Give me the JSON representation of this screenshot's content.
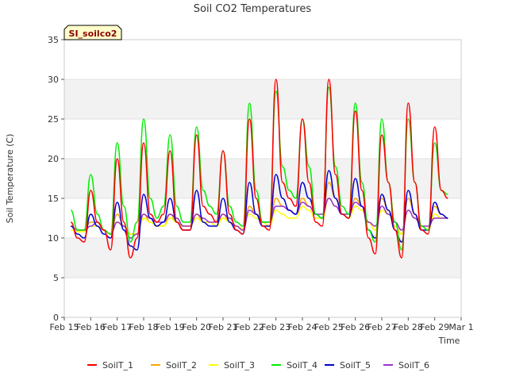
{
  "chart_data": {
    "type": "line",
    "title": "Soil CO2 Temperatures",
    "xlabel": "Time",
    "ylabel": "Soil Temperature (C)",
    "station_label": "SI_soilco2",
    "ylim": [
      0,
      35
    ],
    "yticks": [
      0,
      5,
      10,
      15,
      20,
      25,
      30,
      35
    ],
    "xlim": [
      "Feb 15",
      "Mar 1"
    ],
    "xticks": [
      "Feb 15",
      "Feb 16",
      "Feb 17",
      "Feb 18",
      "Feb 19",
      "Feb 20",
      "Feb 21",
      "Feb 22",
      "Feb 23",
      "Feb 24",
      "Feb 25",
      "Feb 26",
      "Feb 27",
      "Feb 28",
      "Feb 29",
      "Mar 1"
    ],
    "grid": "horizontal bands",
    "legend_position": "bottom",
    "x_sample_interval": "6 hours",
    "x_start": "Feb 15 06:00",
    "series": [
      {
        "name": "SoilT_1",
        "color": "#ff0000",
        "values": [
          12,
          10,
          9.5,
          16,
          12,
          11,
          8.5,
          20,
          12,
          7.5,
          10,
          22,
          13,
          12,
          13,
          21,
          12,
          11,
          11,
          23,
          14,
          13,
          12,
          21,
          13,
          11,
          10.5,
          25,
          15,
          11.5,
          11,
          30,
          17,
          15,
          14,
          25,
          17,
          12,
          11.5,
          30,
          18,
          13,
          12.5,
          26,
          16,
          10,
          8,
          23,
          17,
          11,
          7.5,
          27,
          17,
          11,
          10.5,
          24,
          16,
          15
        ]
      },
      {
        "name": "SoilT_2",
        "color": "#ffa500",
        "values": [
          11.5,
          11,
          11,
          12,
          12,
          11,
          10.5,
          13,
          11.5,
          10.5,
          10.5,
          13,
          12,
          11.5,
          11.5,
          13,
          12,
          11.5,
          11.5,
          13,
          12,
          12,
          11.5,
          13,
          12,
          11.5,
          11,
          14,
          13,
          12,
          11.5,
          15,
          14,
          13.5,
          13,
          15,
          14,
          13,
          12.5,
          17,
          15,
          13,
          12.5,
          15,
          14,
          12,
          11,
          15,
          13.5,
          11.5,
          10.5,
          15,
          13,
          11.5,
          11,
          14,
          13,
          12.5
        ]
      },
      {
        "name": "SoilT_3",
        "color": "#ffff00",
        "values": [
          11,
          10.8,
          10.8,
          11.5,
          11.5,
          11,
          10.5,
          12,
          11.5,
          10.5,
          10.5,
          12.5,
          12,
          11.5,
          11.5,
          12.5,
          12,
          11.5,
          11.5,
          12.5,
          12,
          12,
          11.5,
          12.5,
          12,
          11.5,
          11.2,
          13,
          12.5,
          12,
          11.5,
          13.5,
          13,
          12.5,
          12.5,
          14,
          13.5,
          12.5,
          12.5,
          15,
          14,
          13,
          12.5,
          14,
          13.5,
          12,
          11,
          13.5,
          13,
          11.5,
          10.5,
          13.5,
          12.5,
          11.5,
          11,
          13,
          12.5,
          12.5
        ]
      },
      {
        "name": "SoilT_4",
        "color": "#00ee00",
        "values": [
          13.5,
          11,
          11,
          18,
          13,
          11,
          10.5,
          22,
          14,
          9.5,
          12,
          25,
          15,
          12.5,
          14,
          23,
          14,
          12,
          12,
          24,
          16,
          14,
          13,
          21,
          14,
          12,
          11.5,
          27,
          16,
          12,
          12,
          28.5,
          19,
          16,
          15,
          25,
          19,
          13,
          12.5,
          29,
          19,
          14,
          13,
          27,
          17,
          11,
          9.5,
          25,
          17,
          12,
          8.5,
          25,
          17,
          11.5,
          11,
          22,
          16,
          15.5
        ]
      },
      {
        "name": "SoilT_5",
        "color": "#0000cc",
        "values": [
          11.5,
          10.5,
          10,
          13,
          11.5,
          10.5,
          10,
          14.5,
          11,
          9,
          8.5,
          15.5,
          12.5,
          11.5,
          12,
          15,
          12,
          11,
          11,
          16,
          12,
          11.5,
          11.5,
          15,
          12,
          11,
          10.5,
          17,
          13,
          11.5,
          11.5,
          18,
          15,
          13.5,
          13,
          17,
          15,
          13,
          12.5,
          18.5,
          15,
          13,
          12.5,
          17.5,
          14,
          11,
          10,
          15.5,
          13.5,
          11,
          9.5,
          16,
          13,
          11,
          11,
          14.5,
          13,
          12.5
        ]
      },
      {
        "name": "SoilT_6",
        "color": "#9933cc",
        "values": [
          11.5,
          11,
          11,
          11.5,
          12,
          11,
          10.5,
          12,
          11.5,
          10,
          10.5,
          13,
          12.5,
          12,
          12,
          13,
          12.5,
          11.5,
          11.5,
          13,
          12.5,
          12,
          12,
          13,
          12.5,
          11.5,
          11,
          13.5,
          13,
          12,
          12,
          14,
          14,
          13.5,
          13,
          14.5,
          14,
          13,
          13,
          15,
          14,
          13,
          13,
          14.5,
          14,
          12,
          11.5,
          14,
          13,
          12,
          11,
          13.5,
          12.5,
          11.5,
          11.5,
          12.5,
          12.5,
          12.5
        ]
      }
    ]
  }
}
